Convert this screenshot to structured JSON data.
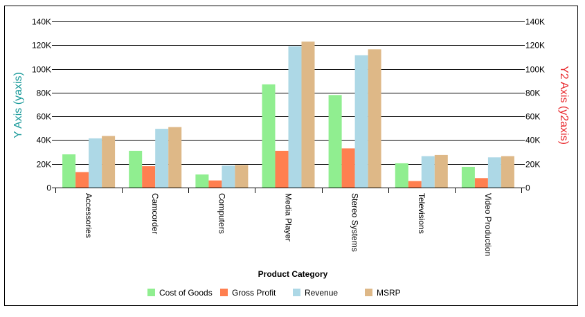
{
  "chart_data": {
    "type": "bar",
    "title": "",
    "xlabel": "Product Category",
    "ylabel": "Y Axis (yaxis)",
    "y2label": "Y2 Axis (y2axis)",
    "ylim": [
      0,
      140000
    ],
    "y2lim": [
      0,
      140000
    ],
    "y_ticks": [
      "0",
      "20K",
      "40K",
      "60K",
      "80K",
      "100K",
      "120K",
      "140K"
    ],
    "y2_ticks": [
      "0",
      "20K",
      "40K",
      "60K",
      "80K",
      "100K",
      "120K",
      "140K"
    ],
    "grid": true,
    "legend_position": "bottom",
    "categories": [
      "Accessories",
      "Camcorder",
      "Computers",
      "Media Player",
      "Stereo Systems",
      "Televisions",
      "Video Production"
    ],
    "series": [
      {
        "name": "Cost of Goods",
        "color": "#90EE90",
        "values": [
          28000,
          31000,
          11000,
          87000,
          78000,
          20500,
          17500
        ]
      },
      {
        "name": "Gross Profit",
        "color": "#FF7F50",
        "values": [
          13000,
          18000,
          6000,
          31000,
          33000,
          5500,
          8000
        ]
      },
      {
        "name": "Revenue",
        "color": "#ADD8E6",
        "values": [
          41500,
          49500,
          18500,
          119000,
          111500,
          26500,
          25500
        ]
      },
      {
        "name": "MSRP",
        "color": "#DEB887",
        "values": [
          43500,
          51000,
          19000,
          123000,
          116500,
          27500,
          26500
        ]
      }
    ],
    "colors": {
      "y_axis_title": "#1A9A9A",
      "y2_axis_title": "#E8262A",
      "grid": "#000000"
    }
  }
}
